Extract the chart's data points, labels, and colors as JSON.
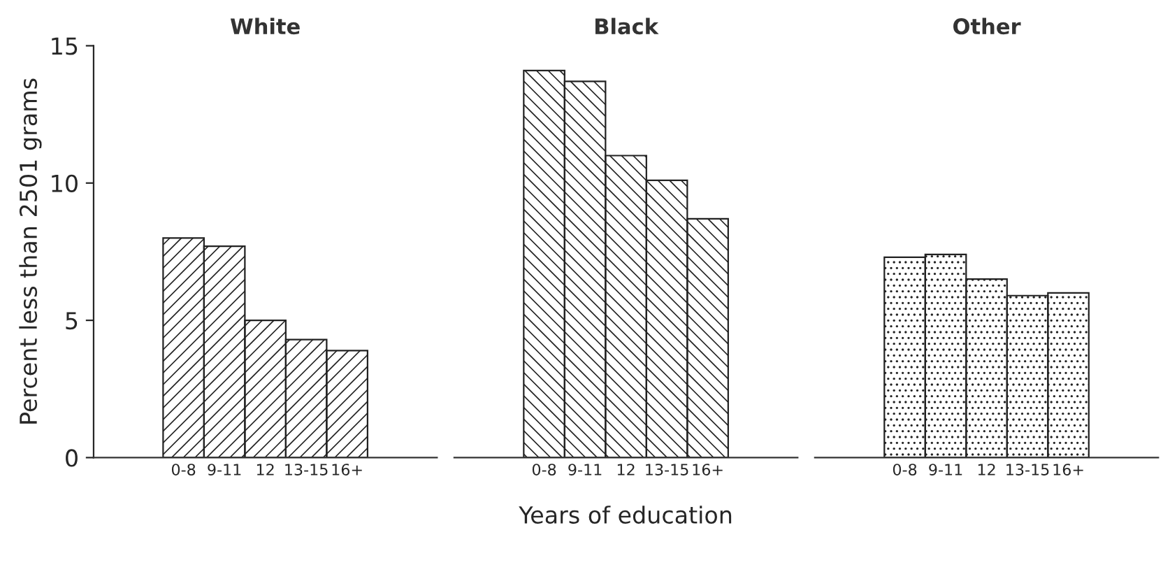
{
  "chart_data": [
    {
      "type": "bar",
      "title": "White",
      "ylabel": "Percent less than 2501 grams",
      "categories": [
        "0-8",
        "9-11",
        "12",
        "13-15",
        "16+"
      ],
      "values": [
        8.0,
        7.7,
        5.0,
        4.3,
        3.9
      ],
      "color": "#222222",
      "ylim": [
        0,
        15
      ],
      "yticks": [
        0,
        5,
        10,
        15
      ],
      "grid": false
    },
    {
      "type": "bar",
      "title": "Black",
      "xlabel": "Years of education",
      "categories": [
        "0-8",
        "9-11",
        "12",
        "13-15",
        "16+"
      ],
      "values": [
        14.1,
        13.7,
        11.0,
        10.1,
        8.7
      ],
      "color": "#222222",
      "ylim": [
        0,
        15
      ],
      "tick_labels": "x",
      "grid": false
    },
    {
      "type": "bar",
      "title": "Other",
      "categories": [
        "0-8",
        "9-11",
        "12",
        "13-15",
        "16+"
      ],
      "values": [
        7.3,
        7.4,
        6.5,
        5.9,
        6.0
      ],
      "color": "#222222",
      "ylim": [
        0,
        15
      ],
      "tick_labels": "x",
      "grid": false
    }
  ]
}
